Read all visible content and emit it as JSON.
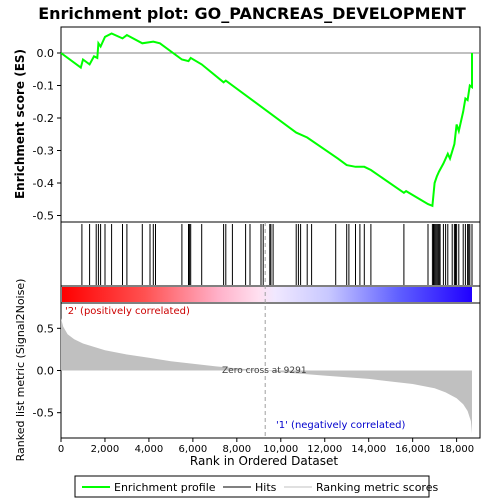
{
  "chart_data": [
    {
      "type": "line",
      "title": "Enrichment plot: GO_PANCREAS_DEVELOPMENT",
      "ylabel": "Enrichment score (ES)",
      "xlim": [
        0,
        19000
      ],
      "ylim": [
        -0.5,
        0.08
      ],
      "yticks": [
        0.0,
        -0.1,
        -0.2,
        -0.3,
        -0.4,
        -0.5
      ],
      "yticklabels": [
        "0.0",
        "-0.1",
        "-0.2",
        "-0.3",
        "-0.4",
        "-0.5"
      ],
      "series": [
        {
          "name": "Enrichment profile",
          "color": "#00ff00",
          "x": [
            0,
            900,
            1000,
            1300,
            1500,
            1650,
            1700,
            1800,
            2000,
            2300,
            2800,
            3000,
            3700,
            4200,
            4500,
            5500,
            5800,
            5900,
            6400,
            7400,
            7500,
            10700,
            11200,
            12600,
            13000,
            13400,
            13800,
            14100,
            15600,
            15700,
            16700,
            16900,
            17000,
            17100,
            17200,
            17400,
            17600,
            17700,
            17900,
            18000,
            18100,
            18300,
            18400,
            18500,
            18600,
            18700,
            18700
          ],
          "y": [
            0.0,
            -0.045,
            -0.02,
            -0.035,
            -0.01,
            -0.015,
            0.03,
            0.02,
            0.05,
            0.06,
            0.045,
            0.055,
            0.03,
            0.035,
            0.03,
            -0.02,
            -0.025,
            -0.015,
            -0.035,
            -0.09,
            -0.085,
            -0.245,
            -0.26,
            -0.325,
            -0.345,
            -0.35,
            -0.35,
            -0.36,
            -0.43,
            -0.425,
            -0.465,
            -0.47,
            -0.4,
            -0.38,
            -0.365,
            -0.34,
            -0.31,
            -0.325,
            -0.28,
            -0.22,
            -0.24,
            -0.18,
            -0.14,
            -0.145,
            -0.1,
            -0.105,
            0.0
          ]
        }
      ],
      "baseline": 0.0,
      "grid": false
    },
    {
      "type": "hits",
      "legend_label": "Hits",
      "x": [
        950,
        1300,
        1600,
        1700,
        1800,
        2000,
        2300,
        2800,
        3000,
        3700,
        4050,
        4200,
        4300,
        5500,
        5800,
        5850,
        5900,
        6400,
        7400,
        7500,
        7800,
        8400,
        8600,
        9100,
        9200,
        9500,
        9550,
        9650,
        10700,
        10800,
        10900,
        11200,
        11400,
        12500,
        13000,
        13100,
        13400,
        13600,
        13800,
        14100,
        15600,
        16700,
        16900,
        16950,
        17000,
        17050,
        17100,
        17150,
        17200,
        17250,
        17400,
        17500,
        17600,
        17800,
        17900,
        17950,
        18000,
        18100,
        18300,
        18400,
        18500,
        18550,
        18600,
        18700
      ]
    },
    {
      "type": "area",
      "ylabel": "Ranked list metric (Signal2Noise)",
      "xlabel": "Rank in Ordered Dataset",
      "xlim": [
        0,
        19000
      ],
      "ylim": [
        -0.8,
        0.8
      ],
      "xticks": [
        0,
        2000,
        4000,
        6000,
        8000,
        10000,
        12000,
        14000,
        16000,
        18000
      ],
      "xticklabels": [
        "0",
        "2,000",
        "4,000",
        "6,000",
        "8,000",
        "10,000",
        "12,000",
        "14,000",
        "16,000",
        "18,000"
      ],
      "yticks": [
        0.5,
        0.0,
        -0.5
      ],
      "yticklabels": [
        "0.5",
        "0.0",
        "-0.5"
      ],
      "series": [
        {
          "name": "Ranking metric scores",
          "color": "#c0c0c0",
          "x": [
            0,
            100,
            300,
            600,
            1000,
            1500,
            2000,
            3000,
            4000,
            5000,
            6000,
            7000,
            8000,
            9291,
            10000,
            11000,
            12000,
            13000,
            14000,
            15000,
            16000,
            17000,
            17500,
            18000,
            18300,
            18500,
            18650,
            18700
          ],
          "y": [
            0.62,
            0.52,
            0.43,
            0.37,
            0.32,
            0.28,
            0.24,
            0.19,
            0.15,
            0.11,
            0.08,
            0.05,
            0.025,
            0.0,
            -0.02,
            -0.04,
            -0.06,
            -0.08,
            -0.1,
            -0.13,
            -0.16,
            -0.21,
            -0.26,
            -0.33,
            -0.4,
            -0.48,
            -0.6,
            -0.75
          ]
        }
      ],
      "zero_cross_rank": 9291,
      "annotations": [
        {
          "text": "Zero cross at 9291",
          "x": 9291,
          "y": 0.0
        },
        {
          "text": "'2' (positively correlated)",
          "color": "#cc0000"
        },
        {
          "text": "'1' (negatively correlated)",
          "color": "#0000cc"
        }
      ]
    }
  ],
  "legend": {
    "items": [
      {
        "label": "Enrichment profile",
        "color": "#00ff00"
      },
      {
        "label": "Hits",
        "color": "#000000"
      },
      {
        "label": "Ranking metric scores",
        "color": "#c0c0c0"
      }
    ],
    "placement": "bottom"
  }
}
